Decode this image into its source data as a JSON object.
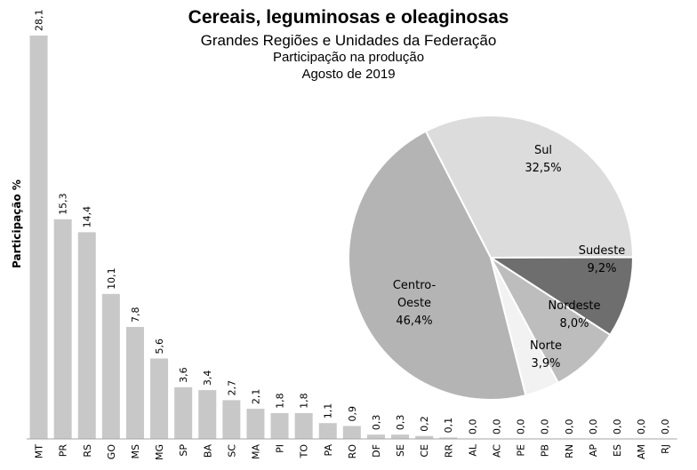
{
  "colors": {
    "bar": "#c8c8c8",
    "axis": "#a6a6a6",
    "slice_centro_oeste": "#b4b4b4",
    "slice_sul": "#dcdcdc",
    "slice_sudeste": "#6e6e6e",
    "slice_nordeste": "#bdbdbd",
    "slice_norte": "#f2f2f2",
    "slice_border": "#ffffff"
  },
  "chart_data": [
    {
      "type": "bar",
      "title": "Cereais, leguminosas e oleaginosas",
      "subtitle": "Grandes Regiões e Unidades da Federação",
      "subtitle2": "Participação na produção",
      "subtitle3": "Agosto de 2019",
      "ylabel": "Participação %",
      "xlabel": "",
      "ylim": [
        0,
        28.1
      ],
      "grid": false,
      "categories": [
        "MT",
        "PR",
        "RS",
        "GO",
        "MS",
        "MG",
        "SP",
        "BA",
        "SC",
        "MA",
        "PI",
        "TO",
        "PA",
        "RO",
        "DF",
        "SE",
        "CE",
        "RR",
        "AL",
        "AC",
        "PE",
        "PB",
        "RN",
        "AP",
        "ES",
        "AM",
        "RJ"
      ],
      "values": [
        28.1,
        15.3,
        14.4,
        10.1,
        7.8,
        5.6,
        3.6,
        3.4,
        2.7,
        2.1,
        1.8,
        1.8,
        1.1,
        0.9,
        0.3,
        0.3,
        0.2,
        0.1,
        0.0,
        0.0,
        0.0,
        0.0,
        0.0,
        0.0,
        0.0,
        0.0,
        0.0
      ],
      "value_labels": [
        "28,1",
        "15,3",
        "14,4",
        "10,1",
        "7,8",
        "5,6",
        "3,6",
        "3,4",
        "2,7",
        "2,1",
        "1,8",
        "1,8",
        "1,1",
        "0,9",
        "0,3",
        "0,3",
        "0,2",
        "0,1",
        "0,0",
        "0,0",
        "0,0",
        "0,0",
        "0,0",
        "0,0",
        "0,0",
        "0,0",
        "0,0"
      ]
    },
    {
      "type": "pie",
      "slices": [
        {
          "name": "Sul",
          "value": 32.5,
          "label": "32,5%"
        },
        {
          "name": "Sudeste",
          "value": 9.2,
          "label": "9,2%"
        },
        {
          "name": "Nordeste",
          "value": 8.0,
          "label": "8,0%"
        },
        {
          "name": "Norte",
          "value": 3.9,
          "label": "3,9%"
        },
        {
          "name": "Centro-Oeste",
          "value": 46.4,
          "label": "46,4%",
          "name_lines": [
            "Centro-",
            "Oeste"
          ]
        }
      ]
    }
  ]
}
